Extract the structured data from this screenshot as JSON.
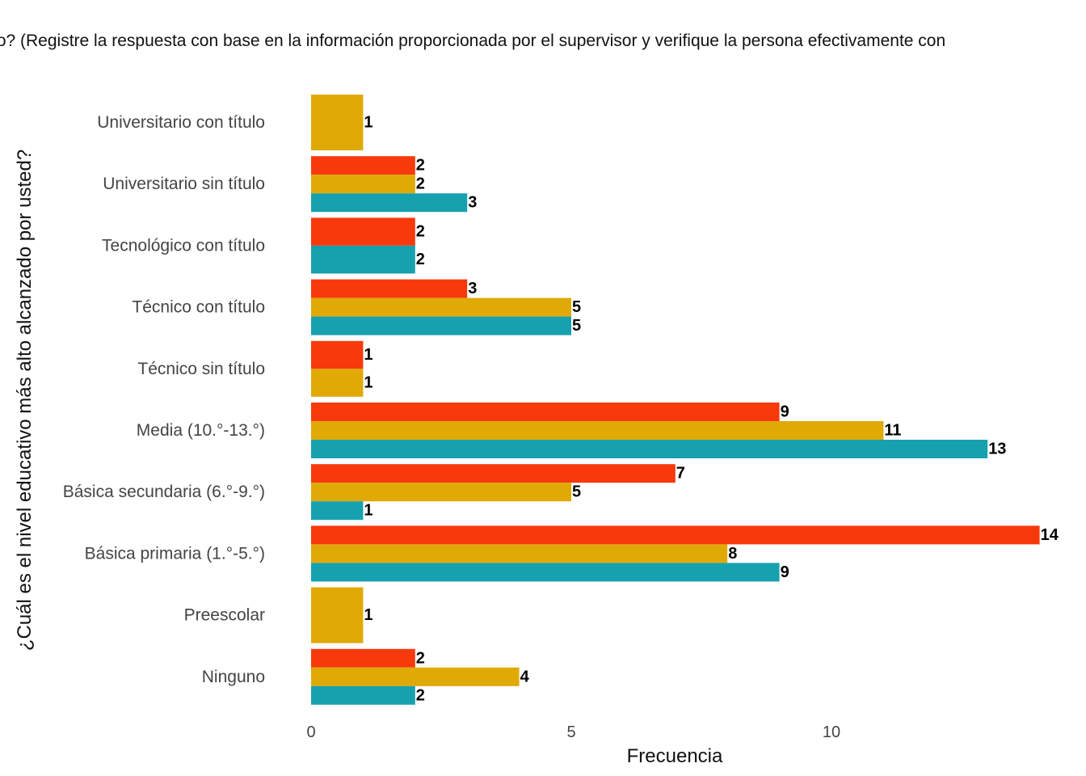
{
  "chart_data": {
    "type": "bar",
    "orientation": "horizontal",
    "title": "to? (Registre la respuesta con base en la información proporcionada por el supervisor y verifique la persona efectivamente con",
    "xlabel": "Frecuencia",
    "ylabel": "¿Cuál es el nivel educativo más alto alcanzado por usted?",
    "xlim": [
      0,
      14
    ],
    "xticks": [
      0,
      5,
      10
    ],
    "grid": false,
    "legend": "none",
    "categories": [
      "Universitario con título",
      "Universitario sin título",
      "Tecnológico con título",
      "Técnico con título",
      "Técnico sin título",
      "Media (10.°-13.°)",
      "Básica secundaria (6.°-9.°)",
      "Básica primaria (1.°-5.°)",
      "Preescolar",
      "Ninguno"
    ],
    "series": [
      {
        "color": "#F8390C",
        "values": [
          null,
          2,
          2,
          3,
          1,
          9,
          7,
          14,
          null,
          2
        ]
      },
      {
        "color": "#E0AA06",
        "values": [
          1,
          2,
          null,
          5,
          1,
          11,
          5,
          8,
          1,
          4
        ]
      },
      {
        "color": "#17A1AE",
        "values": [
          null,
          3,
          2,
          5,
          null,
          13,
          1,
          9,
          null,
          2
        ]
      }
    ]
  }
}
